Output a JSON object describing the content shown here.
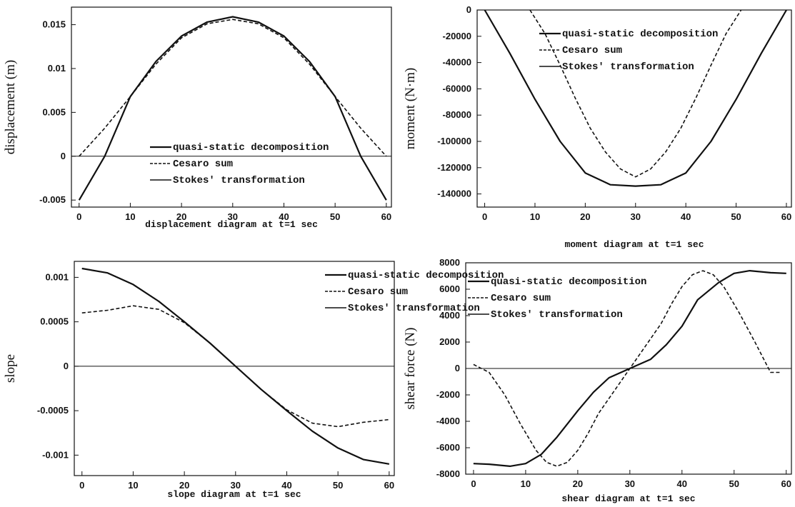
{
  "chart_data": [
    {
      "type": "line",
      "ylabel": "displacement (m)",
      "xlabel": "displacement diagram at t=1 sec",
      "xlim": [
        -1.5,
        61
      ],
      "ylim": [
        -0.0058,
        0.017
      ],
      "xticks": [
        "0",
        "10",
        "20",
        "30",
        "40",
        "50",
        "60"
      ],
      "yticks": [
        "-0.005",
        "0",
        "0.005",
        "0.01",
        "0.015"
      ],
      "ytick_values": [
        -0.005,
        0,
        0.005,
        0.01,
        0.015
      ],
      "legend_position": "center-bottom",
      "legend": [
        "quasi-static decomposition",
        "Cesaro sum",
        "Stokes' transformation"
      ],
      "series": [
        {
          "name": "quasi-static decomposition",
          "style": "solid",
          "x": [
            0,
            5,
            10,
            15,
            20,
            25,
            30,
            35,
            40,
            45,
            50,
            55,
            60
          ],
          "y": [
            -0.005,
            0.0,
            0.0068,
            0.0108,
            0.0137,
            0.0153,
            0.0159,
            0.0153,
            0.0137,
            0.0108,
            0.0068,
            0.0,
            -0.005
          ]
        },
        {
          "name": "Cesaro sum",
          "style": "dashed",
          "x": [
            0,
            5,
            10,
            15,
            20,
            25,
            30,
            35,
            40,
            45,
            50,
            55,
            60
          ],
          "y": [
            0.0,
            0.0032,
            0.0068,
            0.0105,
            0.0135,
            0.0151,
            0.0156,
            0.0151,
            0.0135,
            0.0105,
            0.0068,
            0.0032,
            0.0
          ]
        },
        {
          "name": "Stokes' transformation",
          "style": "solid",
          "x": [
            0,
            5,
            10,
            15,
            20,
            25,
            30,
            35,
            40,
            45,
            50,
            55,
            60
          ],
          "y": [
            -0.005,
            0.0,
            0.0068,
            0.0108,
            0.0137,
            0.0153,
            0.0159,
            0.0153,
            0.0137,
            0.0108,
            0.0068,
            0.0,
            -0.005
          ]
        }
      ]
    },
    {
      "type": "line",
      "ylabel": "moment (N·m)",
      "xlabel": "moment diagram at t=1 sec",
      "xlim": [
        -1.5,
        61
      ],
      "ylim": [
        -150000,
        0
      ],
      "xticks": [
        "0",
        "10",
        "20",
        "30",
        "40",
        "50",
        "60"
      ],
      "yticks": [
        "0",
        "-20000",
        "-40000",
        "-60000",
        "-80000",
        "-100000",
        "-120000",
        "-140000"
      ],
      "ytick_values": [
        0,
        -20000,
        -40000,
        -60000,
        -80000,
        -100000,
        -120000,
        -140000
      ],
      "legend_position": "top-center",
      "legend": [
        "quasi-static decomposition",
        "Cesaro sum",
        "Stokes' transformation"
      ],
      "series": [
        {
          "name": "quasi-static decomposition",
          "style": "solid",
          "x": [
            0,
            5,
            10,
            15,
            20,
            25,
            30,
            35,
            40,
            45,
            50,
            55,
            60
          ],
          "y": [
            0,
            -33000,
            -68000,
            -100000,
            -124000,
            -133000,
            -134000,
            -133000,
            -124000,
            -100000,
            -68000,
            -33000,
            0
          ]
        },
        {
          "name": "Cesaro sum",
          "style": "dashed",
          "x": [
            9,
            12,
            15,
            18,
            21,
            24,
            27,
            30,
            33,
            36,
            39,
            42,
            45,
            48,
            51
          ],
          "y": [
            0,
            -18000,
            -42000,
            -67000,
            -90000,
            -108000,
            -121000,
            -127000,
            -121000,
            -108000,
            -90000,
            -67000,
            -42000,
            -18000,
            0
          ]
        },
        {
          "name": "Stokes' transformation",
          "style": "solid",
          "x": [
            0,
            5,
            10,
            15,
            20,
            25,
            30,
            35,
            40,
            45,
            50,
            55,
            60
          ],
          "y": [
            0,
            -33000,
            -68000,
            -100000,
            -124000,
            -133000,
            -134000,
            -133000,
            -124000,
            -100000,
            -68000,
            -33000,
            0
          ]
        }
      ]
    },
    {
      "type": "line",
      "ylabel": "slope",
      "xlabel": "slope diagram at t=1 sec",
      "xlim": [
        -1.5,
        61
      ],
      "ylim": [
        -0.00123,
        0.00118
      ],
      "xticks": [
        "0",
        "10",
        "20",
        "30",
        "40",
        "50",
        "60"
      ],
      "yticks": [
        "-0.001",
        "-0.0005",
        "0",
        "0.0005",
        "0.001"
      ],
      "ytick_values": [
        -0.001,
        -0.0005,
        0,
        0.0005,
        0.001
      ],
      "legend_position": "top-right",
      "legend": [
        "quasi-static decomposition",
        "Cesaro sum",
        "Stokes' transformation"
      ],
      "series": [
        {
          "name": "quasi-static decomposition",
          "style": "solid",
          "x": [
            0,
            5,
            10,
            15,
            20,
            25,
            30,
            35,
            40,
            45,
            50,
            55,
            60
          ],
          "y": [
            0.0011,
            0.00105,
            0.00092,
            0.00073,
            0.0005,
            0.00026,
            0.0,
            -0.00026,
            -0.0005,
            -0.00073,
            -0.00092,
            -0.00105,
            -0.0011
          ]
        },
        {
          "name": "Cesaro sum",
          "style": "dashed",
          "x": [
            0,
            5,
            10,
            15,
            20,
            25,
            30,
            35,
            40,
            45,
            50,
            55,
            60
          ],
          "y": [
            0.0006,
            0.00063,
            0.00068,
            0.00064,
            0.00049,
            0.00026,
            0.0,
            -0.00026,
            -0.00049,
            -0.00064,
            -0.00068,
            -0.00063,
            -0.0006
          ]
        },
        {
          "name": "Stokes' transformation",
          "style": "solid",
          "x": [
            0,
            5,
            10,
            15,
            20,
            25,
            30,
            35,
            40,
            45,
            50,
            55,
            60
          ],
          "y": [
            0.0011,
            0.00105,
            0.00092,
            0.00073,
            0.0005,
            0.00026,
            0.0,
            -0.00026,
            -0.0005,
            -0.00073,
            -0.00092,
            -0.00105,
            -0.0011
          ]
        }
      ]
    },
    {
      "type": "line",
      "ylabel": "shear force (N)",
      "xlabel": "shear diagram at t=1 sec",
      "xlim": [
        -1.5,
        61
      ],
      "ylim": [
        -8000,
        8000
      ],
      "xticks": [
        "0",
        "10",
        "20",
        "30",
        "40",
        "50",
        "60"
      ],
      "yticks": [
        "-8000",
        "-6000",
        "-4000",
        "-2000",
        "0",
        "2000",
        "4000",
        "6000",
        "8000"
      ],
      "ytick_values": [
        -8000,
        -6000,
        -4000,
        -2000,
        0,
        2000,
        4000,
        6000,
        8000
      ],
      "legend_position": "top-left",
      "legend": [
        "quasi-static decomposition",
        "Cesaro sum",
        "Stokes' transformation"
      ],
      "series": [
        {
          "name": "quasi-static decomposition",
          "style": "solid",
          "x": [
            0,
            3,
            7,
            10,
            13,
            16,
            20,
            23,
            26,
            30,
            34,
            37,
            40,
            43,
            47,
            50,
            53,
            57,
            60
          ],
          "y": [
            -7200,
            -7250,
            -7400,
            -7200,
            -6500,
            -5200,
            -3200,
            -1800,
            -700,
            0,
            700,
            1800,
            3200,
            5200,
            6500,
            7200,
            7400,
            7250,
            7200
          ]
        },
        {
          "name": "Cesaro sum",
          "style": "dashed",
          "x": [
            0,
            3,
            6,
            9,
            12,
            14,
            16,
            18,
            20,
            22,
            24,
            27,
            30,
            33,
            36,
            38,
            40,
            42,
            44,
            46,
            48,
            51,
            54,
            57,
            59
          ],
          "y": [
            300,
            -300,
            -2000,
            -4200,
            -6200,
            -7100,
            -7400,
            -7100,
            -6200,
            -4900,
            -3400,
            -1700,
            0,
            1700,
            3400,
            4900,
            6200,
            7100,
            7400,
            7100,
            6200,
            4200,
            2000,
            -300,
            -300
          ]
        },
        {
          "name": "Stokes' transformation",
          "style": "solid",
          "x": [
            0,
            3,
            7,
            10,
            13,
            16,
            20,
            23,
            26,
            30,
            34,
            37,
            40,
            43,
            47,
            50,
            53,
            57,
            60
          ],
          "y": [
            -7200,
            -7250,
            -7400,
            -7200,
            -6500,
            -5200,
            -3200,
            -1800,
            -700,
            0,
            700,
            1800,
            3200,
            5200,
            6500,
            7200,
            7400,
            7250,
            7200
          ]
        }
      ]
    }
  ]
}
